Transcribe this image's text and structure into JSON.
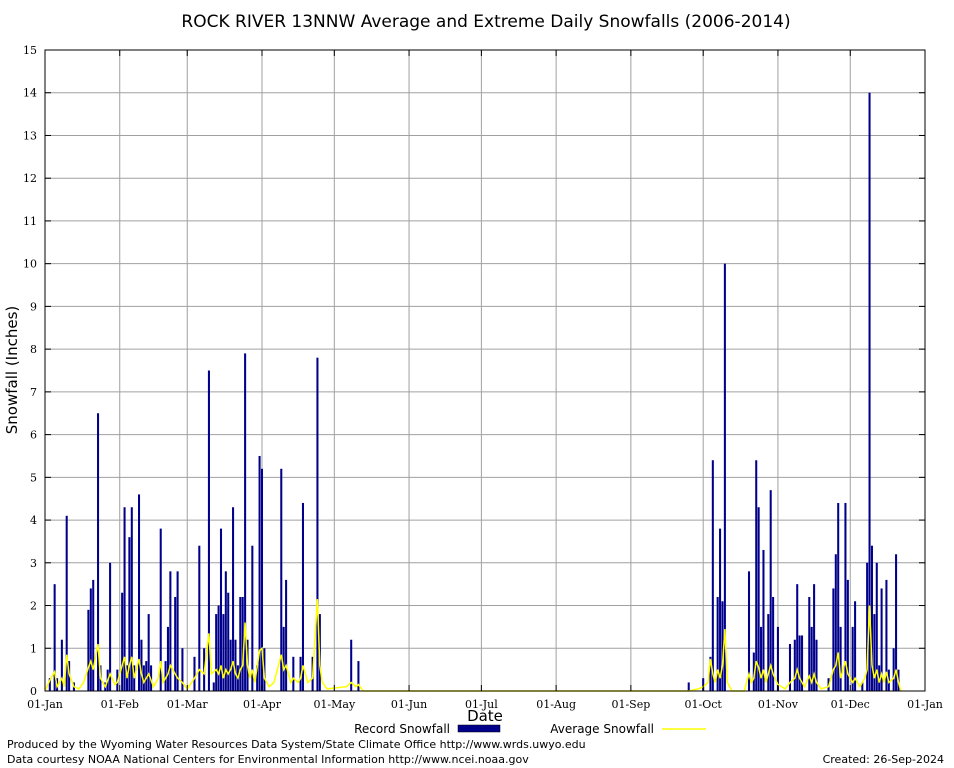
{
  "chart_data": {
    "type": "bar",
    "title": "ROCK RIVER 13NNW Average and Extreme Daily Snowfalls (2006-2014)",
    "xlabel": "Date",
    "ylabel": "Snowfall (Inches)",
    "ylim": [
      0,
      15
    ],
    "yticks": [
      "0",
      "1",
      "2",
      "3",
      "4",
      "5",
      "6",
      "7",
      "8",
      "9",
      "10",
      "11",
      "12",
      "13",
      "14",
      "15"
    ],
    "xlim_days": [
      1,
      366
    ],
    "xticks": [
      {
        "label": "01-Jan",
        "day": 1
      },
      {
        "label": "01-Feb",
        "day": 32
      },
      {
        "label": "01-Mar",
        "day": 60
      },
      {
        "label": "01-Apr",
        "day": 91
      },
      {
        "label": "01-May",
        "day": 121
      },
      {
        "label": "01-Jun",
        "day": 152
      },
      {
        "label": "01-Jul",
        "day": 182
      },
      {
        "label": "01-Aug",
        "day": 213
      },
      {
        "label": "01-Sep",
        "day": 244
      },
      {
        "label": "01-Oct",
        "day": 274
      },
      {
        "label": "01-Nov",
        "day": 305
      },
      {
        "label": "01-Dec",
        "day": 335
      },
      {
        "label": "01-Jan",
        "day": 366
      }
    ],
    "grid": true,
    "legend_position": "bottom",
    "series": [
      {
        "name": "Record Snowfall",
        "kind": "bar",
        "color": "#00008b",
        "points": [
          [
            3,
            0.3
          ],
          [
            5,
            2.5
          ],
          [
            6,
            0.3
          ],
          [
            8,
            1.2
          ],
          [
            10,
            4.1
          ],
          [
            11,
            0.7
          ],
          [
            13,
            0.2
          ],
          [
            19,
            1.9
          ],
          [
            20,
            2.4
          ],
          [
            21,
            2.6
          ],
          [
            23,
            6.5
          ],
          [
            24,
            0.6
          ],
          [
            26,
            0.2
          ],
          [
            27,
            0.5
          ],
          [
            28,
            3.0
          ],
          [
            31,
            0.5
          ],
          [
            33,
            2.3
          ],
          [
            34,
            4.3
          ],
          [
            35,
            0.6
          ],
          [
            36,
            3.6
          ],
          [
            37,
            4.3
          ],
          [
            38,
            0.6
          ],
          [
            40,
            4.6
          ],
          [
            41,
            1.2
          ],
          [
            42,
            0.6
          ],
          [
            43,
            0.7
          ],
          [
            44,
            1.8
          ],
          [
            45,
            0.6
          ],
          [
            49,
            3.8
          ],
          [
            51,
            0.7
          ],
          [
            52,
            1.5
          ],
          [
            53,
            2.8
          ],
          [
            55,
            2.2
          ],
          [
            56,
            2.8
          ],
          [
            58,
            1.0
          ],
          [
            63,
            0.8
          ],
          [
            65,
            3.4
          ],
          [
            67,
            1.0
          ],
          [
            69,
            7.5
          ],
          [
            71,
            0.2
          ],
          [
            72,
            1.8
          ],
          [
            73,
            2.0
          ],
          [
            74,
            3.8
          ],
          [
            75,
            1.8
          ],
          [
            76,
            2.8
          ],
          [
            77,
            2.3
          ],
          [
            78,
            1.2
          ],
          [
            79,
            4.3
          ],
          [
            80,
            1.2
          ],
          [
            81,
            0.6
          ],
          [
            82,
            2.2
          ],
          [
            83,
            2.2
          ],
          [
            84,
            7.9
          ],
          [
            85,
            1.2
          ],
          [
            87,
            3.4
          ],
          [
            89,
            0.6
          ],
          [
            90,
            5.5
          ],
          [
            91,
            5.2
          ],
          [
            92,
            1.0
          ],
          [
            99,
            5.2
          ],
          [
            100,
            1.5
          ],
          [
            101,
            2.6
          ],
          [
            104,
            0.8
          ],
          [
            107,
            0.8
          ],
          [
            108,
            4.4
          ],
          [
            112,
            0.8
          ],
          [
            114,
            7.8
          ],
          [
            115,
            1.8
          ],
          [
            128,
            1.2
          ],
          [
            131,
            0.7
          ],
          [
            268,
            0.2
          ],
          [
            274,
            0.3
          ],
          [
            277,
            0.8
          ],
          [
            278,
            5.4
          ],
          [
            280,
            2.2
          ],
          [
            281,
            3.8
          ],
          [
            282,
            2.1
          ],
          [
            283,
            10.0
          ],
          [
            293,
            2.8
          ],
          [
            295,
            0.9
          ],
          [
            296,
            5.4
          ],
          [
            297,
            4.3
          ],
          [
            298,
            1.5
          ],
          [
            299,
            3.3
          ],
          [
            301,
            1.8
          ],
          [
            302,
            4.7
          ],
          [
            303,
            2.2
          ],
          [
            305,
            1.5
          ],
          [
            310,
            1.1
          ],
          [
            312,
            1.2
          ],
          [
            313,
            2.5
          ],
          [
            314,
            1.3
          ],
          [
            315,
            1.3
          ],
          [
            318,
            2.2
          ],
          [
            319,
            1.5
          ],
          [
            320,
            2.5
          ],
          [
            321,
            1.2
          ],
          [
            326,
            0.3
          ],
          [
            328,
            2.4
          ],
          [
            329,
            3.2
          ],
          [
            330,
            4.4
          ],
          [
            331,
            1.5
          ],
          [
            333,
            4.4
          ],
          [
            334,
            2.6
          ],
          [
            336,
            1.5
          ],
          [
            337,
            2.1
          ],
          [
            340,
            0.2
          ],
          [
            342,
            3.0
          ],
          [
            343,
            14.0
          ],
          [
            344,
            3.4
          ],
          [
            345,
            1.8
          ],
          [
            346,
            3.0
          ],
          [
            347,
            0.6
          ],
          [
            348,
            2.4
          ],
          [
            350,
            2.6
          ],
          [
            351,
            0.5
          ],
          [
            353,
            1.0
          ],
          [
            354,
            3.2
          ],
          [
            355,
            0.5
          ]
        ]
      },
      {
        "name": "Average Snowfall",
        "kind": "line",
        "color": "#ffff00",
        "points": [
          [
            1,
            0.0
          ],
          [
            3,
            0.25
          ],
          [
            5,
            0.45
          ],
          [
            6,
            0.1
          ],
          [
            8,
            0.3
          ],
          [
            9,
            0.1
          ],
          [
            10,
            0.85
          ],
          [
            11,
            0.4
          ],
          [
            13,
            0.1
          ],
          [
            15,
            0.05
          ],
          [
            17,
            0.2
          ],
          [
            19,
            0.55
          ],
          [
            20,
            0.7
          ],
          [
            21,
            0.5
          ],
          [
            22,
            0.8
          ],
          [
            23,
            1.1
          ],
          [
            24,
            0.3
          ],
          [
            26,
            0.1
          ],
          [
            28,
            0.4
          ],
          [
            30,
            0.15
          ],
          [
            31,
            0.2
          ],
          [
            33,
            0.6
          ],
          [
            34,
            0.8
          ],
          [
            35,
            0.3
          ],
          [
            36,
            0.6
          ],
          [
            37,
            0.8
          ],
          [
            38,
            0.3
          ],
          [
            40,
            0.75
          ],
          [
            41,
            0.4
          ],
          [
            42,
            0.2
          ],
          [
            44,
            0.4
          ],
          [
            46,
            0.1
          ],
          [
            48,
            0.3
          ],
          [
            49,
            0.7
          ],
          [
            50,
            0.2
          ],
          [
            52,
            0.4
          ],
          [
            53,
            0.6
          ],
          [
            55,
            0.4
          ],
          [
            56,
            0.3
          ],
          [
            58,
            0.2
          ],
          [
            60,
            0.05
          ],
          [
            63,
            0.3
          ],
          [
            65,
            0.5
          ],
          [
            67,
            0.4
          ],
          [
            69,
            1.35
          ],
          [
            70,
            0.4
          ],
          [
            72,
            0.5
          ],
          [
            73,
            0.4
          ],
          [
            74,
            0.6
          ],
          [
            75,
            0.3
          ],
          [
            76,
            0.5
          ],
          [
            77,
            0.4
          ],
          [
            78,
            0.5
          ],
          [
            79,
            0.7
          ],
          [
            80,
            0.4
          ],
          [
            81,
            0.3
          ],
          [
            82,
            0.5
          ],
          [
            83,
            0.6
          ],
          [
            84,
            1.6
          ],
          [
            85,
            0.6
          ],
          [
            86,
            0.3
          ],
          [
            87,
            0.5
          ],
          [
            88,
            0.2
          ],
          [
            90,
            0.95
          ],
          [
            91,
            1.0
          ],
          [
            92,
            0.3
          ],
          [
            94,
            0.1
          ],
          [
            96,
            0.2
          ],
          [
            99,
            0.85
          ],
          [
            100,
            0.5
          ],
          [
            101,
            0.6
          ],
          [
            103,
            0.2
          ],
          [
            104,
            0.3
          ],
          [
            106,
            0.2
          ],
          [
            107,
            0.3
          ],
          [
            108,
            0.6
          ],
          [
            110,
            0.2
          ],
          [
            112,
            0.3
          ],
          [
            114,
            2.15
          ],
          [
            115,
            0.6
          ],
          [
            116,
            0.2
          ],
          [
            118,
            0.05
          ],
          [
            126,
            0.1
          ],
          [
            128,
            0.2
          ],
          [
            130,
            0.1
          ],
          [
            131,
            0.15
          ],
          [
            133,
            0.0
          ],
          [
            152,
            0.0
          ],
          [
            268,
            0.0
          ],
          [
            272,
            0.05
          ],
          [
            274,
            0.1
          ],
          [
            276,
            0.2
          ],
          [
            277,
            0.75
          ],
          [
            278,
            0.4
          ],
          [
            279,
            0.2
          ],
          [
            280,
            0.5
          ],
          [
            281,
            0.3
          ],
          [
            282,
            0.6
          ],
          [
            283,
            1.45
          ],
          [
            284,
            0.2
          ],
          [
            286,
            0.0
          ],
          [
            291,
            0.0
          ],
          [
            293,
            0.4
          ],
          [
            294,
            0.2
          ],
          [
            295,
            0.3
          ],
          [
            296,
            0.7
          ],
          [
            297,
            0.55
          ],
          [
            298,
            0.3
          ],
          [
            299,
            0.5
          ],
          [
            300,
            0.2
          ],
          [
            302,
            0.6
          ],
          [
            303,
            0.4
          ],
          [
            305,
            0.15
          ],
          [
            308,
            0.05
          ],
          [
            310,
            0.2
          ],
          [
            312,
            0.3
          ],
          [
            313,
            0.5
          ],
          [
            314,
            0.3
          ],
          [
            316,
            0.1
          ],
          [
            318,
            0.35
          ],
          [
            319,
            0.2
          ],
          [
            320,
            0.4
          ],
          [
            321,
            0.2
          ],
          [
            323,
            0.05
          ],
          [
            326,
            0.1
          ],
          [
            328,
            0.5
          ],
          [
            329,
            0.6
          ],
          [
            330,
            0.9
          ],
          [
            331,
            0.3
          ],
          [
            333,
            0.7
          ],
          [
            334,
            0.4
          ],
          [
            336,
            0.2
          ],
          [
            337,
            0.3
          ],
          [
            339,
            0.1
          ],
          [
            341,
            0.3
          ],
          [
            342,
            0.5
          ],
          [
            343,
            2.0
          ],
          [
            344,
            0.6
          ],
          [
            345,
            0.3
          ],
          [
            346,
            0.5
          ],
          [
            347,
            0.2
          ],
          [
            348,
            0.4
          ],
          [
            349,
            0.2
          ],
          [
            350,
            0.45
          ],
          [
            351,
            0.2
          ],
          [
            353,
            0.3
          ],
          [
            354,
            0.5
          ],
          [
            355,
            0.2
          ],
          [
            356,
            0.0
          ]
        ]
      }
    ]
  },
  "footer": {
    "produced_by": "Produced by the Wyoming Water Resources Data System/State Climate Office http://www.wrds.uwyo.edu",
    "courtesy": "Data courtesy NOAA National Centers for Environmental Information http://www.ncei.noaa.gov",
    "created": "Created:  26-Sep-2024"
  }
}
